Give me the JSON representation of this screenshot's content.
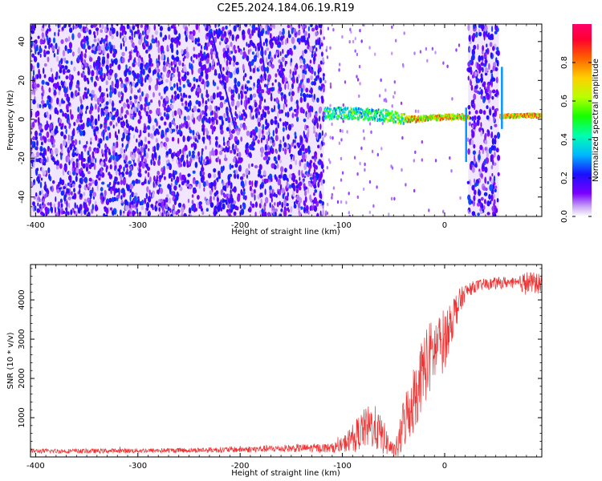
{
  "title": "C2E5.2024.184.06.19.R19",
  "chart_data": [
    {
      "type": "heatmap",
      "xlabel": "Height of straight line (km)",
      "ylabel": "Frequency (Hz)",
      "xlim": [
        -405,
        95
      ],
      "ylim": [
        -50,
        49
      ],
      "xticks": [
        -400,
        -300,
        -200,
        -100,
        0
      ],
      "yticks": [
        -40,
        -20,
        0,
        20,
        40
      ],
      "colorbar": {
        "label": "Normalized spectral amplitude",
        "ticks": [
          "0.0",
          "0.2",
          "0.4",
          "0.6",
          "0.8"
        ],
        "range": [
          0,
          1
        ],
        "colormap": "gist_rainbow_r"
      },
      "features": {
        "noise_regions_km": [
          [
            -405,
            -118
          ],
          [
            23,
            53
          ]
        ],
        "signal_band_km": [
          -118,
          95
        ],
        "signal_center_freq_hz": [
          3,
          3,
          2,
          0,
          1,
          2
        ],
        "signal_center_x_km": [
          -118,
          -90,
          -60,
          -40,
          0,
          95
        ]
      }
    },
    {
      "type": "line",
      "xlabel": "Height of straight line (km)",
      "ylabel": "SNR (10 * v/v)",
      "xlim": [
        -405,
        95
      ],
      "ylim": [
        0,
        4900
      ],
      "xticks": [
        -400,
        -300,
        -200,
        -100,
        0
      ],
      "yticks": [
        1000,
        2000,
        3000,
        4000
      ],
      "series": [
        {
          "color": "#ee3333",
          "x": [
            -405,
            -350,
            -300,
            -250,
            -200,
            -150,
            -110,
            -100,
            -90,
            -80,
            -70,
            -60,
            -50,
            -45,
            -40,
            -30,
            -20,
            -10,
            0,
            10,
            20,
            30,
            40,
            50,
            60,
            70,
            80,
            95
          ],
          "y": [
            150,
            150,
            160,
            170,
            190,
            220,
            230,
            300,
            500,
            700,
            800,
            500,
            150,
            300,
            900,
            1500,
            2300,
            2700,
            3000,
            3700,
            4200,
            4350,
            4400,
            4420,
            4450,
            4400,
            4450,
            4400
          ],
          "noise_amp": [
            60,
            60,
            60,
            65,
            80,
            100,
            120,
            200,
            350,
            500,
            600,
            450,
            150,
            400,
            700,
            900,
            1000,
            900,
            800,
            500,
            200,
            150,
            150,
            150,
            150,
            150,
            300,
            250
          ]
        }
      ]
    }
  ]
}
